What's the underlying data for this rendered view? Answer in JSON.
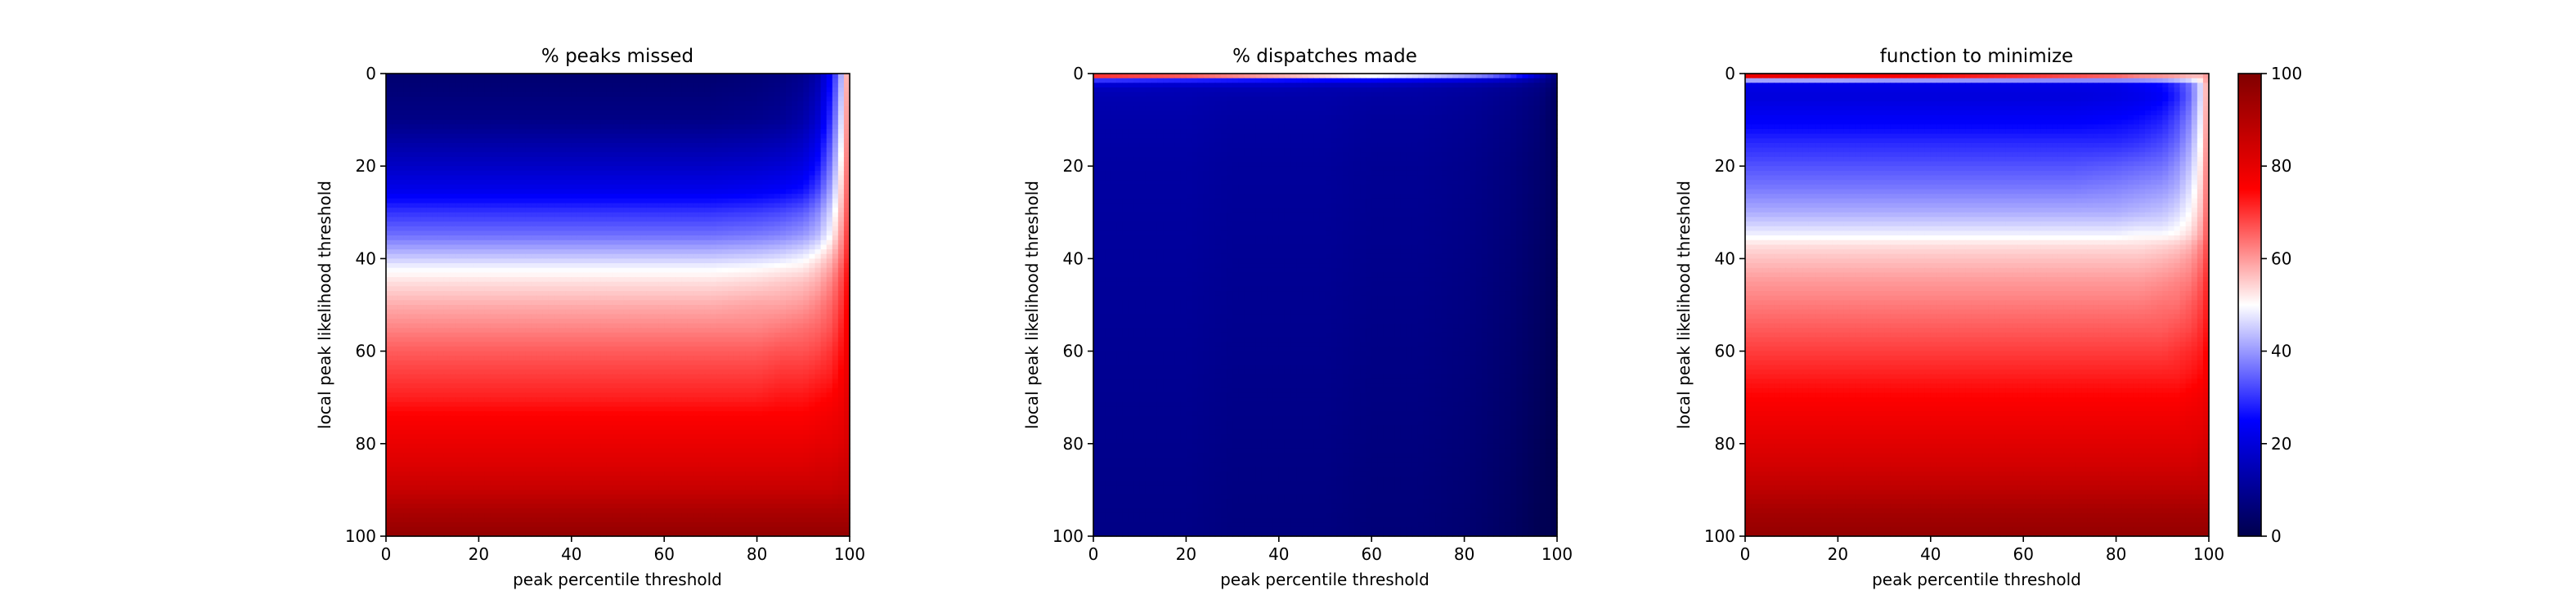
{
  "chart_data": [
    {
      "type": "heatmap",
      "title": "% peaks missed",
      "xlabel": "peak percentile threshold",
      "ylabel": "local peak likelihood threshold",
      "xlim": [
        0,
        100
      ],
      "ylim": [
        100,
        0
      ],
      "xticks": [
        "0",
        "20",
        "40",
        "60",
        "80",
        "100"
      ],
      "yticks": [
        "0",
        "20",
        "40",
        "60",
        "80",
        "100"
      ],
      "colormap": "seismic",
      "value_range": [
        0,
        100
      ],
      "x": [
        0,
        10,
        20,
        30,
        40,
        50,
        60,
        70,
        80,
        85,
        90,
        93,
        96,
        98,
        100
      ],
      "y": [
        0,
        10,
        20,
        25,
        30,
        35,
        40,
        42,
        45,
        50,
        55,
        60,
        65,
        70,
        75,
        80,
        85,
        90,
        95,
        100
      ],
      "z": [
        [
          5,
          5,
          5,
          5,
          5,
          5,
          5,
          5,
          6,
          7,
          9,
          13,
          25,
          40,
          65
        ],
        [
          8,
          8,
          8,
          8,
          8,
          8,
          8,
          8,
          9,
          10,
          13,
          18,
          30,
          45,
          66
        ],
        [
          17,
          17,
          17,
          17,
          17,
          17,
          17,
          17,
          18,
          19,
          21,
          26,
          37,
          50,
          68
        ],
        [
          22,
          22,
          22,
          22,
          22,
          22,
          22,
          22,
          23,
          24,
          26,
          31,
          41,
          53,
          69
        ],
        [
          30,
          30,
          30,
          30,
          30,
          30,
          30,
          30,
          31,
          32,
          34,
          38,
          46,
          56,
          70
        ],
        [
          36,
          36,
          36,
          36,
          36,
          36,
          36,
          36,
          37,
          38,
          40,
          43,
          50,
          59,
          72
        ],
        [
          45,
          45,
          45,
          45,
          45,
          45,
          45,
          45,
          46,
          47,
          49,
          52,
          57,
          63,
          74
        ],
        [
          49,
          49,
          49,
          49,
          49,
          49,
          49,
          49,
          50,
          51,
          52,
          55,
          59,
          65,
          75
        ],
        [
          53,
          53,
          53,
          53,
          53,
          53,
          53,
          53,
          54,
          55,
          56,
          58,
          62,
          67,
          76
        ],
        [
          58,
          58,
          58,
          58,
          58,
          58,
          58,
          58,
          59,
          59,
          60,
          62,
          65,
          69,
          77
        ],
        [
          62,
          62,
          62,
          62,
          62,
          62,
          62,
          62,
          62,
          63,
          64,
          65,
          67,
          71,
          78
        ],
        [
          66,
          66,
          66,
          66,
          66,
          66,
          66,
          66,
          66,
          67,
          67,
          68,
          70,
          73,
          79
        ],
        [
          69,
          69,
          69,
          69,
          69,
          69,
          69,
          69,
          69,
          70,
          70,
          71,
          72,
          75,
          80
        ],
        [
          72,
          72,
          72,
          72,
          72,
          72,
          72,
          72,
          72,
          73,
          73,
          74,
          75,
          77,
          81
        ],
        [
          76,
          76,
          76,
          76,
          76,
          76,
          76,
          76,
          76,
          76,
          76,
          77,
          78,
          79,
          82
        ],
        [
          79,
          79,
          79,
          79,
          79,
          79,
          79,
          79,
          79,
          79,
          79,
          80,
          80,
          81,
          83
        ],
        [
          82,
          82,
          82,
          82,
          82,
          82,
          82,
          82,
          82,
          82,
          82,
          83,
          83,
          84,
          85
        ],
        [
          86,
          86,
          86,
          86,
          86,
          86,
          86,
          86,
          86,
          86,
          86,
          86,
          86,
          87,
          87
        ],
        [
          92,
          92,
          92,
          92,
          92,
          92,
          92,
          92,
          92,
          92,
          92,
          92,
          92,
          92,
          92
        ],
        [
          96,
          96,
          96,
          96,
          96,
          96,
          96,
          96,
          96,
          96,
          96,
          96,
          96,
          96,
          96
        ]
      ]
    },
    {
      "type": "heatmap",
      "title": "% dispatches made",
      "xlabel": "peak percentile threshold",
      "ylabel": "local peak likelihood threshold",
      "xlim": [
        0,
        100
      ],
      "ylim": [
        100,
        0
      ],
      "xticks": [
        "0",
        "20",
        "40",
        "60",
        "80",
        "100"
      ],
      "yticks": [
        "0",
        "20",
        "40",
        "60",
        "80",
        "100"
      ],
      "colormap": "seismic",
      "value_range": [
        0,
        100
      ],
      "x": [
        0,
        10,
        20,
        30,
        40,
        50,
        60,
        70,
        80,
        85,
        90,
        93,
        96,
        98,
        100
      ],
      "y": [
        0,
        0.5,
        1,
        1.5,
        2,
        3,
        5,
        10,
        20,
        40,
        60,
        80,
        100
      ],
      "z": [
        [
          96,
          95,
          93,
          90,
          86,
          80,
          72,
          62,
          50,
          42,
          34,
          26,
          18,
          12,
          8
        ],
        [
          70,
          68,
          66,
          62,
          58,
          54,
          50,
          46,
          40,
          36,
          30,
          24,
          16,
          11,
          7
        ],
        [
          45,
          44,
          42,
          40,
          38,
          36,
          34,
          31,
          28,
          26,
          22,
          18,
          13,
          9,
          6
        ],
        [
          30,
          29,
          28,
          27,
          26,
          25,
          24,
          22,
          20,
          18,
          16,
          14,
          11,
          8,
          5
        ],
        [
          22,
          21,
          21,
          20,
          20,
          19,
          18,
          17,
          15,
          14,
          13,
          11,
          9,
          7,
          5
        ],
        [
          16,
          16,
          15,
          15,
          15,
          14,
          14,
          13,
          12,
          11,
          10,
          9,
          8,
          6,
          4
        ],
        [
          14,
          14,
          14,
          13,
          13,
          13,
          12,
          12,
          11,
          10,
          9,
          8,
          7,
          5,
          3
        ],
        [
          13,
          13,
          13,
          12,
          12,
          12,
          11,
          11,
          10,
          9,
          8,
          7,
          6,
          4,
          3
        ],
        [
          12,
          12,
          12,
          11,
          11,
          11,
          10,
          10,
          9,
          8,
          7,
          6,
          5,
          4,
          2
        ],
        [
          11,
          11,
          11,
          10,
          10,
          10,
          9,
          9,
          8,
          7,
          6,
          5,
          4,
          3,
          2
        ],
        [
          10,
          10,
          10,
          9,
          9,
          9,
          8,
          8,
          7,
          6,
          5,
          4,
          3,
          2,
          1
        ],
        [
          9,
          9,
          9,
          8,
          8,
          8,
          7,
          7,
          6,
          5,
          4,
          3,
          2,
          1,
          1
        ],
        [
          8,
          8,
          8,
          7,
          7,
          7,
          6,
          6,
          5,
          4,
          3,
          2,
          1,
          1,
          0
        ]
      ]
    },
    {
      "type": "heatmap",
      "title": "function to minimize",
      "xlabel": "peak percentile threshold",
      "ylabel": "local peak likelihood threshold",
      "xlim": [
        0,
        100
      ],
      "ylim": [
        100,
        0
      ],
      "xticks": [
        "0",
        "20",
        "40",
        "60",
        "80",
        "100"
      ],
      "yticks": [
        "0",
        "20",
        "40",
        "60",
        "80",
        "100"
      ],
      "colormap": "seismic",
      "value_range": [
        0,
        100
      ],
      "x": [
        0,
        10,
        20,
        30,
        40,
        50,
        60,
        70,
        80,
        85,
        90,
        93,
        96,
        98,
        100
      ],
      "y": [
        0,
        1,
        2,
        5,
        10,
        15,
        20,
        25,
        30,
        33,
        35,
        37,
        40,
        45,
        50,
        55,
        60,
        65,
        70,
        75,
        80,
        85,
        90,
        95,
        100
      ],
      "z": [
        [
          98,
          96,
          94,
          92,
          90,
          87,
          84,
          80,
          75,
          70,
          66,
          62,
          58,
          56,
          60
        ],
        [
          60,
          60,
          60,
          58,
          58,
          57,
          56,
          55,
          55,
          54,
          55,
          56,
          56,
          57,
          62
        ],
        [
          22,
          22,
          22,
          22,
          22,
          22,
          22,
          22,
          22,
          24,
          26,
          30,
          36,
          45,
          62
        ],
        [
          20,
          20,
          20,
          20,
          20,
          20,
          20,
          20,
          21,
          22,
          24,
          28,
          35,
          45,
          62
        ],
        [
          24,
          24,
          24,
          24,
          24,
          24,
          24,
          24,
          25,
          26,
          28,
          32,
          38,
          47,
          63
        ],
        [
          29,
          29,
          29,
          29,
          29,
          29,
          29,
          29,
          29,
          30,
          32,
          35,
          41,
          49,
          64
        ],
        [
          33,
          33,
          33,
          33,
          33,
          33,
          33,
          33,
          34,
          35,
          36,
          39,
          44,
          51,
          65
        ],
        [
          37,
          37,
          37,
          37,
          37,
          37,
          37,
          37,
          38,
          39,
          40,
          42,
          47,
          53,
          66
        ],
        [
          42,
          42,
          42,
          42,
          42,
          42,
          42,
          42,
          42,
          43,
          44,
          46,
          50,
          55,
          67
        ],
        [
          46,
          46,
          46,
          46,
          46,
          46,
          46,
          46,
          46,
          47,
          47,
          49,
          52,
          57,
          68
        ],
        [
          49,
          49,
          49,
          49,
          49,
          49,
          49,
          49,
          49,
          50,
          50,
          51,
          54,
          58,
          68
        ],
        [
          53,
          53,
          53,
          53,
          53,
          53,
          53,
          53,
          53,
          53,
          54,
          55,
          57,
          61,
          69
        ],
        [
          56,
          56,
          56,
          56,
          56,
          56,
          56,
          56,
          56,
          56,
          57,
          58,
          60,
          63,
          70
        ],
        [
          60,
          60,
          60,
          60,
          60,
          60,
          60,
          60,
          60,
          60,
          61,
          62,
          63,
          66,
          72
        ],
        [
          63,
          63,
          63,
          63,
          63,
          63,
          63,
          63,
          63,
          63,
          64,
          64,
          66,
          68,
          73
        ],
        [
          66,
          66,
          66,
          66,
          66,
          66,
          66,
          66,
          66,
          66,
          66,
          67,
          68,
          70,
          74
        ],
        [
          69,
          69,
          69,
          69,
          69,
          69,
          69,
          69,
          69,
          69,
          69,
          70,
          71,
          72,
          76
        ],
        [
          72,
          72,
          72,
          72,
          72,
          72,
          72,
          72,
          72,
          72,
          72,
          72,
          73,
          74,
          77
        ],
        [
          75,
          75,
          75,
          75,
          75,
          75,
          75,
          75,
          75,
          75,
          75,
          75,
          76,
          77,
          79
        ],
        [
          78,
          78,
          78,
          78,
          78,
          78,
          78,
          78,
          78,
          78,
          78,
          78,
          79,
          79,
          81
        ],
        [
          81,
          81,
          81,
          81,
          81,
          81,
          81,
          81,
          81,
          81,
          81,
          81,
          81,
          82,
          83
        ],
        [
          84,
          84,
          84,
          84,
          84,
          84,
          84,
          84,
          84,
          84,
          84,
          84,
          84,
          85,
          85
        ],
        [
          88,
          88,
          88,
          88,
          88,
          88,
          88,
          88,
          88,
          88,
          88,
          88,
          88,
          88,
          88
        ],
        [
          93,
          93,
          93,
          93,
          93,
          93,
          93,
          93,
          93,
          93,
          93,
          93,
          93,
          93,
          93
        ],
        [
          96,
          96,
          96,
          96,
          96,
          96,
          96,
          96,
          96,
          96,
          96,
          96,
          96,
          96,
          96
        ]
      ]
    }
  ],
  "colorbar": {
    "colormap": "seismic",
    "range": [
      0,
      100
    ],
    "ticks": [
      "0",
      "20",
      "40",
      "60",
      "80",
      "100"
    ]
  }
}
